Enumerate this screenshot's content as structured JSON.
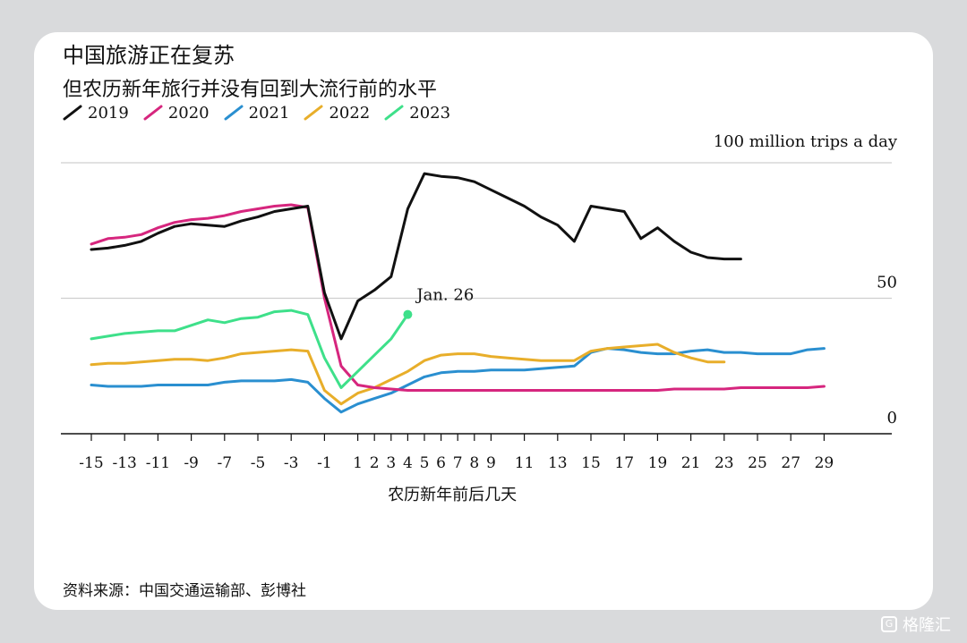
{
  "title": "中国旅游正在复苏",
  "subtitle": "但农历新年旅行并没有回到大流行前的水平",
  "source": "资料来源：中国交通运输部、彭博社",
  "watermark": "格隆汇",
  "unit_label": "100 million trips a day",
  "colors": {
    "2019": "#111111",
    "2020": "#d6267e",
    "2021": "#2a8fd0",
    "2022": "#e8ae2a",
    "2023": "#3ee08a"
  },
  "chart_data": {
    "type": "line",
    "title": "中国旅游正在复苏",
    "subtitle": "但农历新年旅行并没有回到大流行前的水平",
    "xlabel": "农历新年前后几天",
    "ylabel": "100 million trips a day",
    "xlim": [
      -15.5,
      30.5
    ],
    "ylim": [
      0,
      100
    ],
    "y_ticks": [
      0,
      50
    ],
    "x_ticks": [
      -15,
      -13,
      -11,
      -9,
      -7,
      -5,
      -3,
      -1,
      1,
      2,
      3,
      4,
      5,
      6,
      7,
      8,
      9,
      11,
      13,
      15,
      17,
      19,
      21,
      23,
      25,
      27,
      29
    ],
    "grid": true,
    "legend": "top-left",
    "annotations": [
      {
        "text": "Jan. 26",
        "x": 4,
        "y": 44
      }
    ],
    "series": [
      {
        "name": "2019",
        "x": [
          -15,
          -14,
          -13,
          -12,
          -11,
          -10,
          -9,
          -8,
          -7,
          -6,
          -5,
          -4,
          -3,
          -2,
          -1,
          0,
          1,
          2,
          3,
          4,
          5,
          6,
          7,
          8,
          9,
          10,
          11,
          12,
          13,
          14,
          15,
          16,
          17,
          18,
          19,
          20,
          21,
          22,
          23,
          24
        ],
        "y": [
          68,
          68.5,
          69.5,
          71,
          74,
          76.5,
          77.5,
          77,
          76.5,
          78.5,
          80,
          82,
          83,
          84,
          52,
          35,
          49,
          53,
          58,
          83,
          96,
          95,
          94.5,
          93,
          90,
          87,
          84,
          80,
          77,
          71,
          84,
          83,
          82,
          72,
          76,
          71,
          67,
          65,
          64.5,
          64.5
        ]
      },
      {
        "name": "2020",
        "x": [
          -15,
          -14,
          -13,
          -12,
          -11,
          -10,
          -9,
          -8,
          -7,
          -6,
          -5,
          -4,
          -3,
          -2,
          -1,
          0,
          1,
          2,
          3,
          4,
          5,
          6,
          7,
          8,
          9,
          10,
          11,
          12,
          13,
          14,
          15,
          16,
          17,
          18,
          19,
          20,
          21,
          22,
          23,
          24,
          25,
          26,
          27,
          28,
          29
        ],
        "y": [
          70,
          72,
          72.5,
          73.5,
          76,
          78,
          79,
          79.5,
          80.5,
          82,
          83,
          84,
          84.5,
          83.5,
          50,
          25,
          18,
          17,
          16.5,
          16,
          16,
          16,
          16,
          16,
          16,
          16,
          16,
          16,
          16,
          16,
          16,
          16,
          16,
          16,
          16,
          16.5,
          16.5,
          16.5,
          16.5,
          17,
          17,
          17,
          17,
          17,
          17.5
        ]
      },
      {
        "name": "2021",
        "x": [
          -15,
          -14,
          -13,
          -12,
          -11,
          -10,
          -9,
          -8,
          -7,
          -6,
          -5,
          -4,
          -3,
          -2,
          -1,
          0,
          1,
          2,
          3,
          4,
          5,
          6,
          7,
          8,
          9,
          10,
          11,
          12,
          13,
          14,
          15,
          16,
          17,
          18,
          19,
          20,
          21,
          22,
          23,
          24,
          25,
          26,
          27,
          28,
          29
        ],
        "y": [
          18,
          17.5,
          17.5,
          17.5,
          18,
          18,
          18,
          18,
          19,
          19.5,
          19.5,
          19.5,
          20,
          19,
          13,
          8,
          11,
          13,
          15,
          18,
          21,
          22.5,
          23,
          23,
          23.5,
          23.5,
          23.5,
          24,
          24.5,
          25,
          30,
          31.5,
          31,
          30,
          29.5,
          29.5,
          30.5,
          31,
          30,
          30,
          29.5,
          29.5,
          29.5,
          31,
          31.5
        ]
      },
      {
        "name": "2022",
        "x": [
          -15,
          -14,
          -13,
          -12,
          -11,
          -10,
          -9,
          -8,
          -7,
          -6,
          -5,
          -4,
          -3,
          -2,
          -1,
          0,
          1,
          2,
          3,
          4,
          5,
          6,
          7,
          8,
          9,
          10,
          11,
          12,
          13,
          14,
          15,
          16,
          17,
          18,
          19,
          20,
          21,
          22,
          23
        ],
        "y": [
          25.5,
          26,
          26,
          26.5,
          27,
          27.5,
          27.5,
          27,
          28,
          29.5,
          30,
          30.5,
          31,
          30.5,
          16,
          11,
          15,
          17,
          20,
          23,
          27,
          29,
          29.5,
          29.5,
          28.5,
          28,
          27.5,
          27,
          27,
          27,
          30.5,
          31.5,
          32,
          32.5,
          33,
          30,
          28,
          26.5,
          26.5
        ]
      },
      {
        "name": "2023",
        "x": [
          -15,
          -14,
          -13,
          -12,
          -11,
          -10,
          -9,
          -8,
          -7,
          -6,
          -5,
          -4,
          -3,
          -2,
          -1,
          0,
          1,
          2,
          3,
          4
        ],
        "y": [
          35,
          36,
          37,
          37.5,
          38,
          38,
          40,
          42,
          41,
          42.5,
          43,
          45,
          45.5,
          44,
          28,
          17,
          23,
          29,
          35,
          44
        ]
      }
    ]
  }
}
